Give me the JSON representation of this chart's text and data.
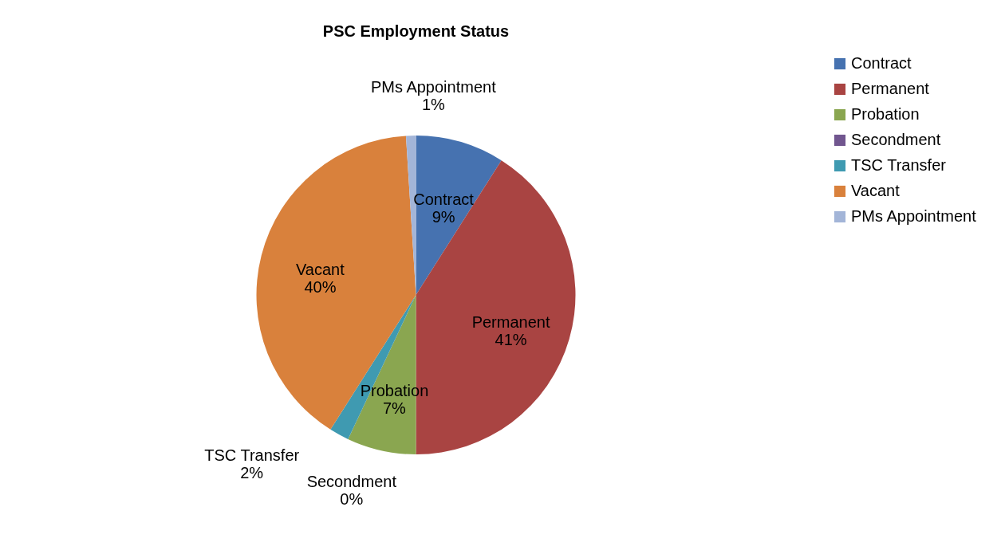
{
  "chart_data": {
    "type": "pie",
    "title": "PSC Employment Status",
    "categories": [
      "Contract",
      "Permanent",
      "Probation",
      "Secondment",
      "TSC Transfer",
      "Vacant",
      "PMs Appointment"
    ],
    "values": [
      9,
      41,
      7,
      0,
      2,
      40,
      1
    ],
    "value_labels": [
      "9%",
      "41%",
      "7%",
      "0%",
      "2%",
      "40%",
      "1%"
    ],
    "colors": [
      "#4672b0",
      "#a94442",
      "#8aa650",
      "#71568f",
      "#3f9ab1",
      "#d9813c",
      "#a3b5d8"
    ],
    "legend": "right"
  }
}
